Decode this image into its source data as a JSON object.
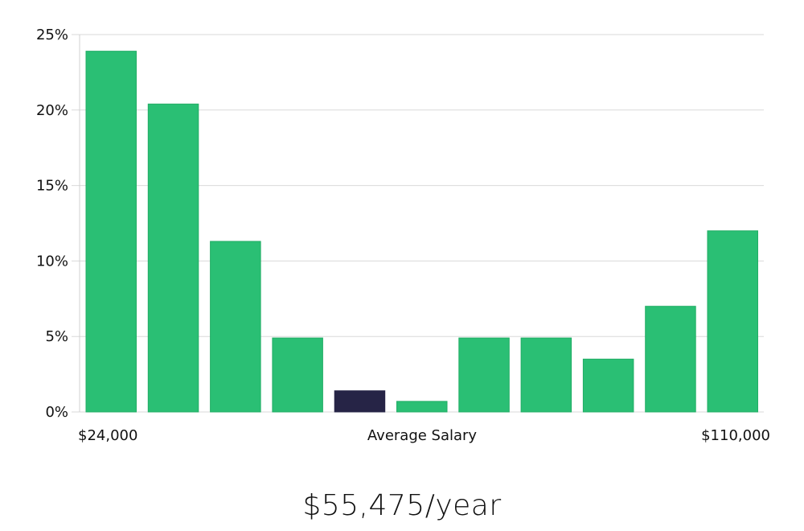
{
  "colors": {
    "bar": "#2abf74",
    "bar_stroke": "#22ad65",
    "highlight_bar": "#262446",
    "grid": "#d9d9d9",
    "text": "#111111"
  },
  "chart_data": {
    "type": "bar",
    "title": "",
    "xlabel": "Average Salary",
    "ylabel": "",
    "x_range_labels": {
      "min": "$24,000",
      "max": "$110,000"
    },
    "yticks": [
      "0%",
      "5%",
      "10%",
      "15%",
      "20%",
      "25%"
    ],
    "ylim": [
      0,
      25
    ],
    "unit": "%",
    "values": [
      23.9,
      20.4,
      11.3,
      4.9,
      1.4,
      0.7,
      4.9,
      4.9,
      3.5,
      7.0,
      12.0
    ],
    "highlight_index": 4,
    "grid": true,
    "legend": "none"
  },
  "summary": {
    "salary": "$55,475/year"
  }
}
